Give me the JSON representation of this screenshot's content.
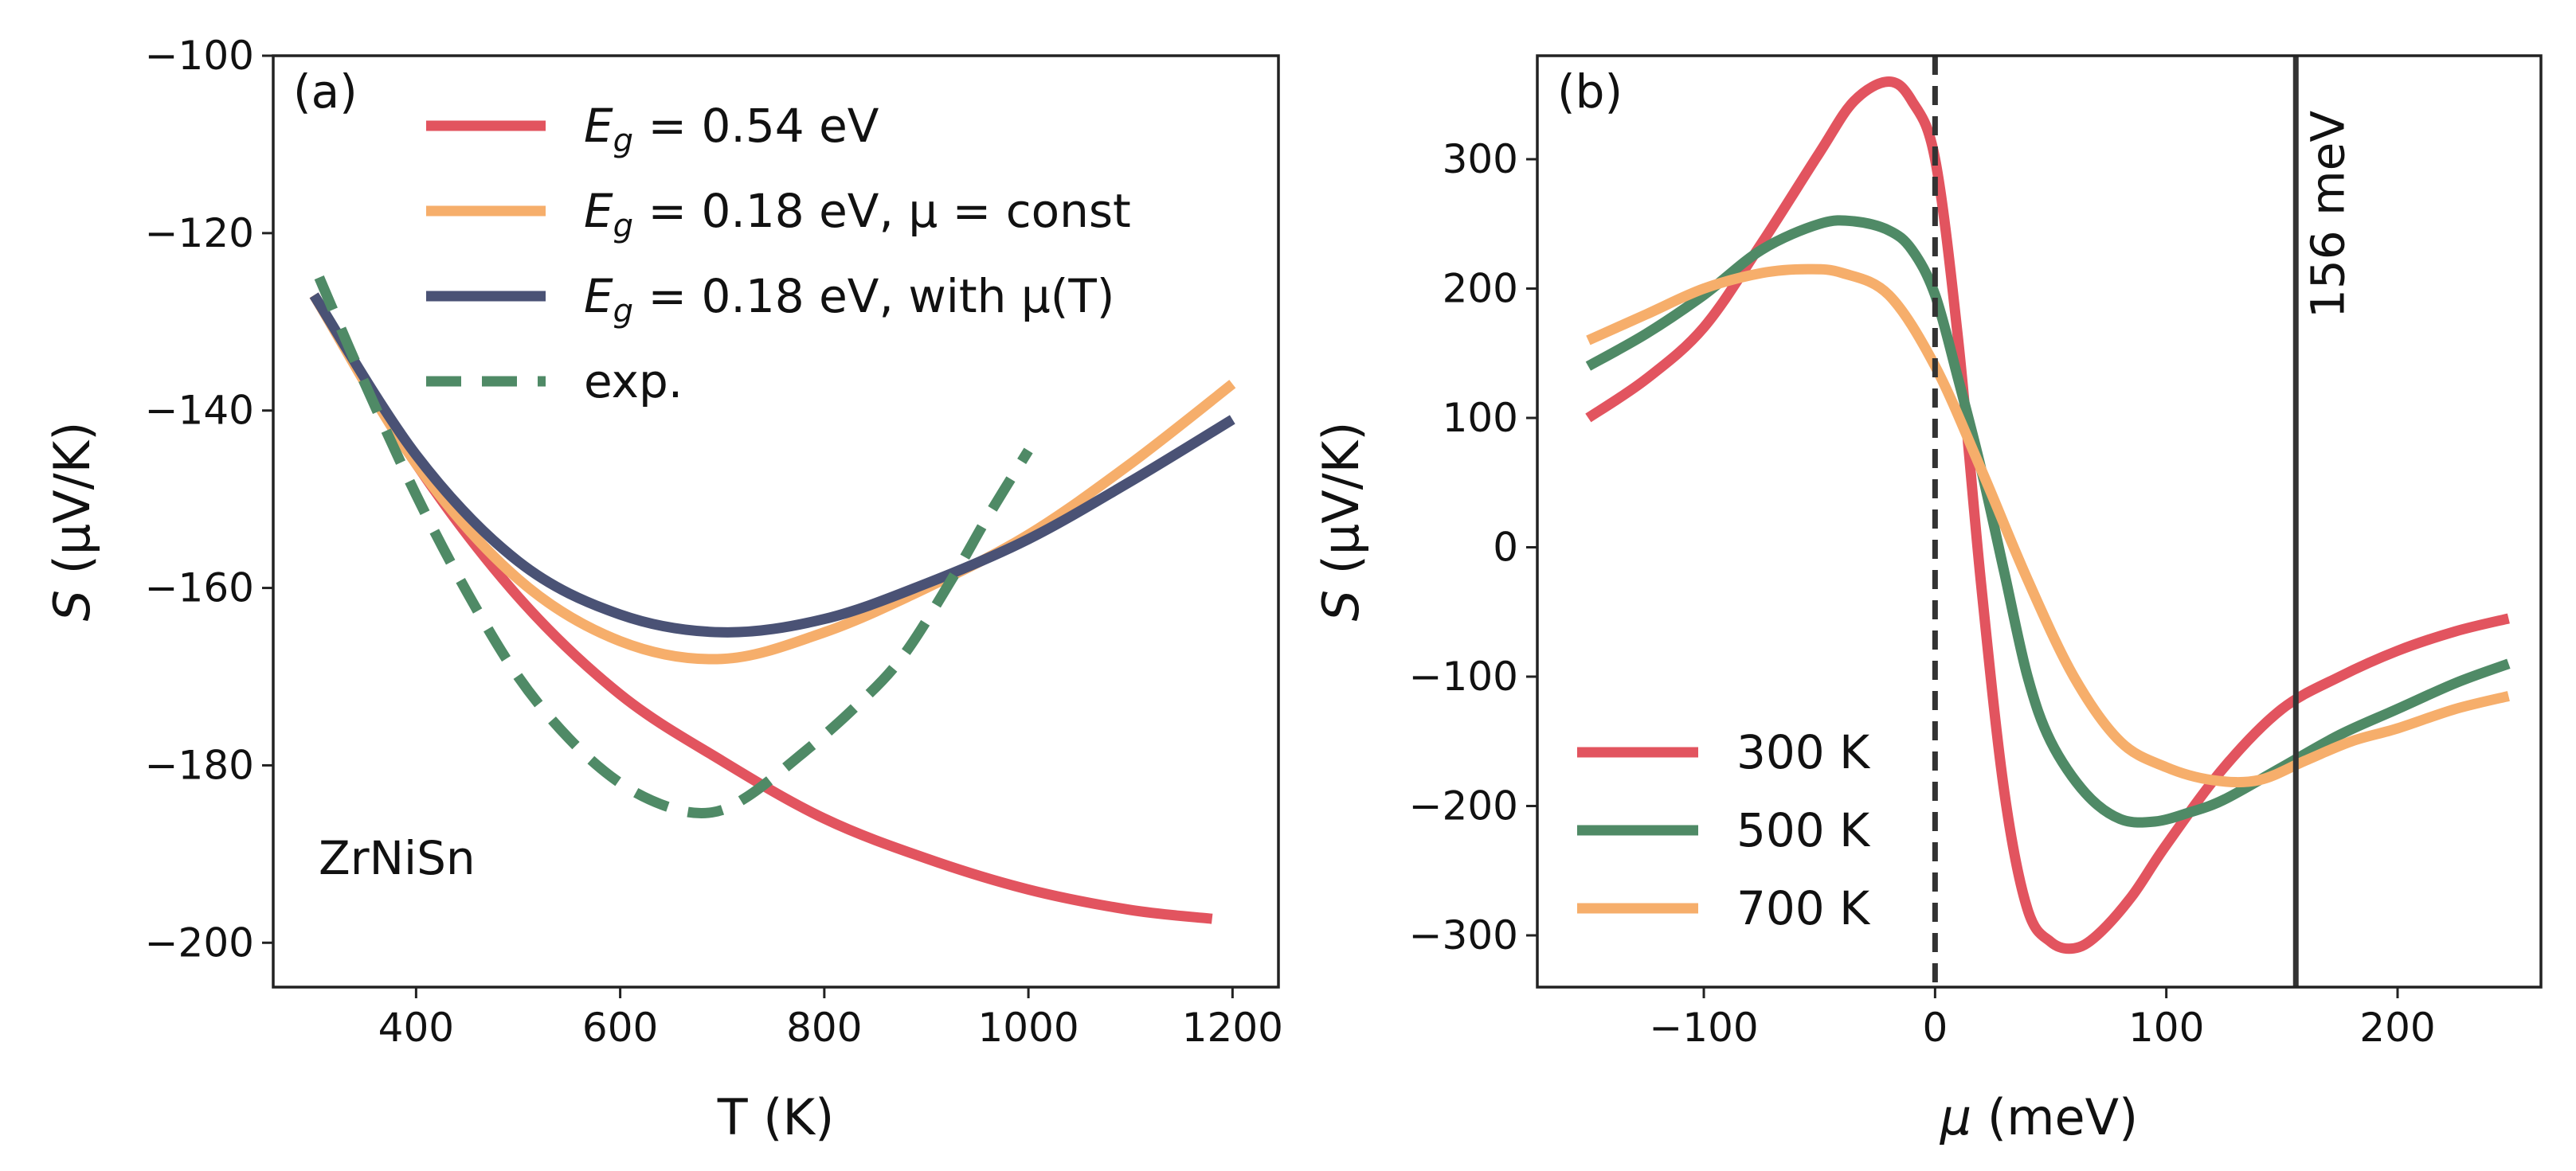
{
  "colors": {
    "red": "#E2545F",
    "orange": "#F6AE6B",
    "navy": "#4A5275",
    "green": "#4F8A66",
    "black": "#333333"
  },
  "chart_data": [
    {
      "type": "line",
      "panel_label": "(a)",
      "xlabel": "T (K)",
      "ylabel": "S (μV/K)",
      "ylabel_main": "S",
      "ylabel_units": " (μV/K)",
      "xlim": [
        260,
        1245
      ],
      "ylim": [
        -205,
        -100
      ],
      "xticks": [
        400,
        600,
        800,
        1000,
        1200
      ],
      "yticks": [
        -100,
        -120,
        -140,
        -160,
        -180,
        -200
      ],
      "annotation": "ZrNiSn",
      "legend_position": "top",
      "series": [
        {
          "name": "E_g = 0.54 eV",
          "legend_main": "E",
          "legend_sub": "g",
          "legend_rest": " = 0.54 eV",
          "color_key": "red",
          "dash": "solid",
          "x": [
            300,
            400,
            500,
            600,
            700,
            800,
            900,
            1000,
            1100,
            1180
          ],
          "y": [
            -127,
            -146,
            -161,
            -172,
            -179.5,
            -186,
            -190.5,
            -194,
            -196.3,
            -197.3
          ]
        },
        {
          "name": "E_g = 0.18 eV, μ = const",
          "legend_main": "E",
          "legend_sub": "g",
          "legend_rest": " = 0.18 eV, μ = const",
          "color_key": "orange",
          "dash": "solid",
          "x": [
            300,
            400,
            500,
            600,
            700,
            800,
            900,
            1000,
            1100,
            1200
          ],
          "y": [
            -127,
            -146,
            -159,
            -166,
            -168,
            -165,
            -160,
            -154,
            -146,
            -137
          ]
        },
        {
          "name": "E_g = 0.18 eV, with μ(T)",
          "legend_main": "E",
          "legend_sub": "g",
          "legend_rest": " = 0.18 eV, with μ(T)",
          "color_key": "navy",
          "dash": "solid",
          "x": [
            300,
            400,
            500,
            600,
            700,
            800,
            900,
            1000,
            1100,
            1200
          ],
          "y": [
            -127,
            -145,
            -157,
            -163,
            -165,
            -163.5,
            -159.5,
            -154.5,
            -148,
            -141
          ]
        },
        {
          "name": "exp.",
          "legend_main": "exp.",
          "legend_sub": "",
          "legend_rest": "",
          "color_key": "green",
          "dash": "dashed",
          "x": [
            305,
            350,
            400,
            450,
            500,
            550,
            600,
            650,
            690,
            725,
            775,
            825,
            875,
            925,
            960,
            1000
          ],
          "y": [
            -125,
            -137,
            -149.5,
            -160.5,
            -170,
            -177,
            -182,
            -184.8,
            -185.3,
            -183.5,
            -179,
            -174,
            -168,
            -159,
            -152,
            -144.5
          ]
        }
      ]
    },
    {
      "type": "line",
      "panel_label": "(b)",
      "xlabel": "μ (meV)",
      "xlabel_main": "μ",
      "xlabel_units": " (meV)",
      "ylabel": "S (μV/K)",
      "ylabel_main": "S",
      "ylabel_units": " (μV/K)",
      "xlim": [
        -172,
        262
      ],
      "ylim": [
        -340,
        380
      ],
      "xticks": [
        -100,
        0,
        100,
        200
      ],
      "yticks": [
        300,
        200,
        100,
        0,
        -100,
        -200,
        -300
      ],
      "vlines": [
        {
          "x": 0,
          "style": "dashed",
          "label": ""
        },
        {
          "x": 156,
          "style": "solid",
          "label": "156 meV"
        }
      ],
      "legend_position": "lower-left",
      "series": [
        {
          "name": "300 K",
          "color_key": "red",
          "dash": "solid",
          "x": [
            -150,
            -125,
            -100,
            -75,
            -50,
            -35,
            -20,
            -10,
            0,
            10,
            20,
            30,
            40,
            50,
            60,
            70,
            85,
            100,
            125,
            150,
            175,
            200,
            225,
            248
          ],
          "y": [
            100,
            130,
            170,
            235,
            305,
            345,
            360,
            345,
            300,
            160,
            -30,
            -190,
            -280,
            -305,
            -310,
            -300,
            -270,
            -230,
            -170,
            -125,
            -100,
            -80,
            -65,
            -55
          ]
        },
        {
          "name": "500 K",
          "color_key": "green",
          "dash": "solid",
          "x": [
            -150,
            -125,
            -100,
            -75,
            -50,
            -35,
            -20,
            -10,
            0,
            10,
            20,
            30,
            40,
            50,
            65,
            80,
            95,
            110,
            125,
            150,
            175,
            200,
            225,
            248
          ],
          "y": [
            140,
            165,
            195,
            230,
            250,
            252,
            245,
            230,
            195,
            130,
            60,
            -20,
            -100,
            -150,
            -190,
            -210,
            -212,
            -205,
            -195,
            -170,
            -145,
            -125,
            -105,
            -90
          ]
        },
        {
          "name": "700 K",
          "color_key": "orange",
          "dash": "solid",
          "x": [
            -150,
            -125,
            -100,
            -75,
            -55,
            -40,
            -20,
            0,
            20,
            40,
            60,
            80,
            100,
            120,
            140,
            160,
            180,
            200,
            225,
            248
          ],
          "y": [
            160,
            180,
            200,
            212,
            215,
            212,
            195,
            140,
            60,
            -25,
            -100,
            -150,
            -170,
            -180,
            -180,
            -165,
            -150,
            -140,
            -125,
            -115
          ]
        }
      ]
    }
  ]
}
